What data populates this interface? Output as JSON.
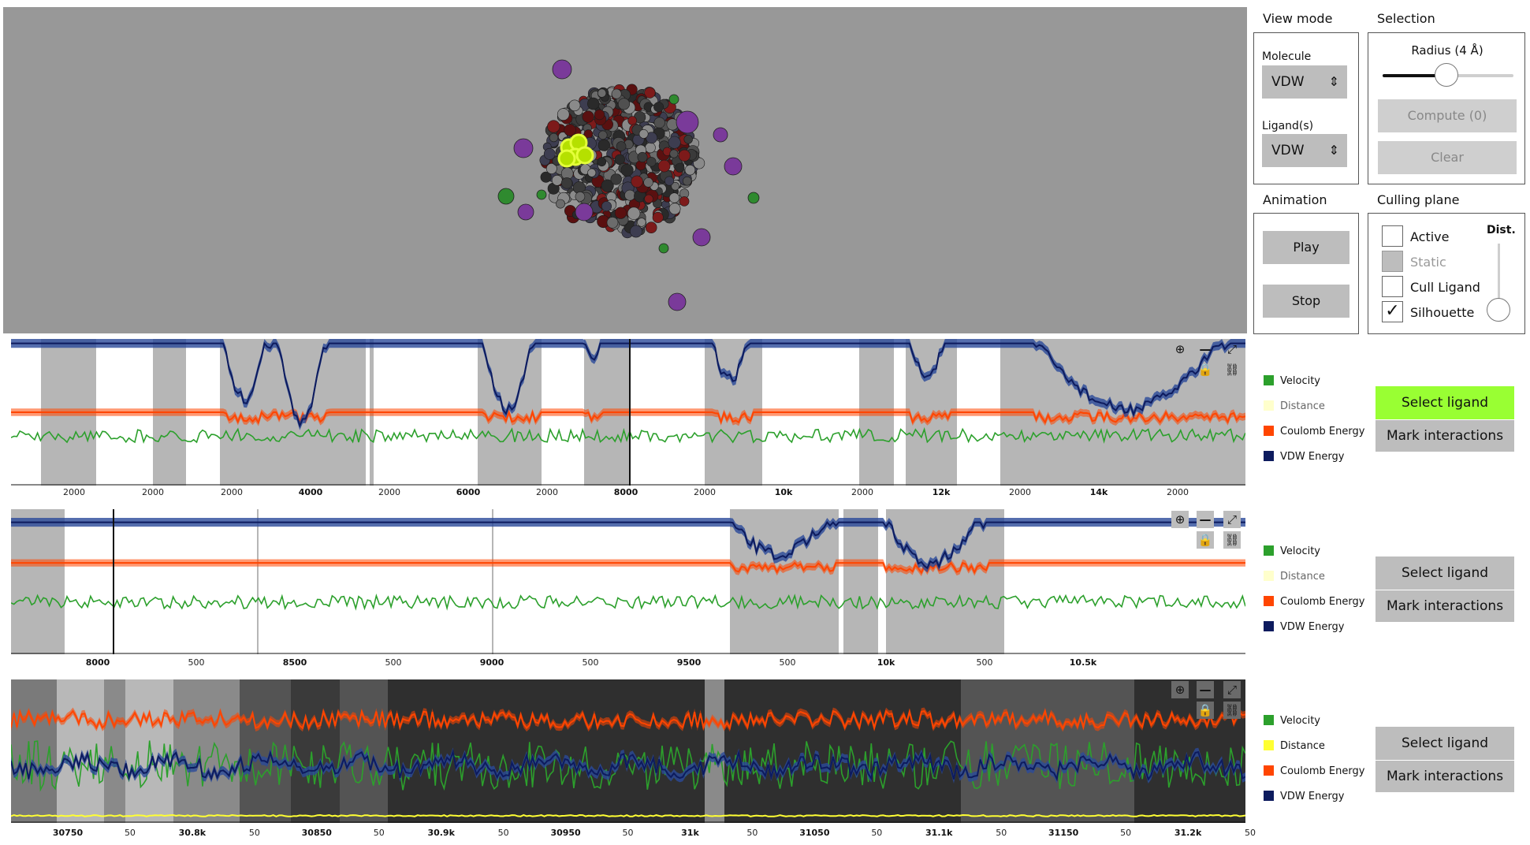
{
  "panel": {
    "view_mode": {
      "title": "View mode",
      "molecule_label": "Molecule",
      "molecule_value": "VDW",
      "ligand_label": "Ligand(s)",
      "ligand_value": "VDW"
    },
    "selection": {
      "title": "Selection",
      "radius_label": "Radius (4 Å)",
      "radius_fraction": 0.49,
      "compute_label": "Compute (0)",
      "clear_label": "Clear"
    },
    "animation": {
      "title": "Animation",
      "play_label": "Play",
      "stop_label": "Stop"
    },
    "culling": {
      "title": "Culling plane",
      "dist_label": "Dist.",
      "active": "Active",
      "static": "Static",
      "cull_ligand": "Cull Ligand",
      "silhouette": "Silhouette",
      "silhouette_checked": true
    }
  },
  "legend": [
    {
      "name": "Velocity",
      "color": "#2ca02c"
    },
    {
      "name": "Distance",
      "color": "#ffff33"
    },
    {
      "name": "Coulomb Energy",
      "color": "#ff4500"
    },
    {
      "name": "VDW Energy",
      "color": "#0d1b5e"
    }
  ],
  "buttons": {
    "select_ligand": "Select ligand",
    "mark_interactions": "Mark interactions"
  },
  "colors": {
    "select_active": "#99ff33",
    "viewport_bg": "#989898",
    "button_bg": "#bdbdbd"
  },
  "icons": [
    "zoom-icon",
    "minimize-icon",
    "fullscreen-icon",
    "lock-icon",
    "link-icon"
  ],
  "chart_data": [
    {
      "type": "line",
      "series": [
        {
          "name": "Velocity"
        },
        {
          "name": "Coulomb Energy"
        },
        {
          "name": "VDW Energy"
        }
      ],
      "tick_labels": [
        "2000",
        "2000",
        "2000",
        "4000",
        "2000",
        "6000",
        "2000",
        "8000",
        "2000",
        "10k",
        "2000",
        "12k",
        "2000",
        "14k",
        "2000"
      ],
      "cursor": 8000,
      "select_ligand_active": true
    },
    {
      "type": "line",
      "series": [
        {
          "name": "Velocity"
        },
        {
          "name": "Coulomb Energy"
        },
        {
          "name": "VDW Energy"
        }
      ],
      "tick_labels": [
        "8000",
        "500",
        "8500",
        "500",
        "9000",
        "500",
        "9500",
        "500",
        "10k",
        "500",
        "10.5k"
      ],
      "cursor": 8070,
      "select_ligand_active": false
    },
    {
      "type": "line",
      "series": [
        {
          "name": "Velocity"
        },
        {
          "name": "Distance"
        },
        {
          "name": "Coulomb Energy"
        },
        {
          "name": "VDW Energy"
        }
      ],
      "tick_labels": [
        "30750",
        "50",
        "30.8k",
        "50",
        "30850",
        "50",
        "30.9k",
        "50",
        "30950",
        "50",
        "31k",
        "50",
        "31050",
        "50",
        "31.1k",
        "50",
        "31150",
        "50",
        "31.2k",
        "50"
      ],
      "select_ligand_active": false
    }
  ]
}
